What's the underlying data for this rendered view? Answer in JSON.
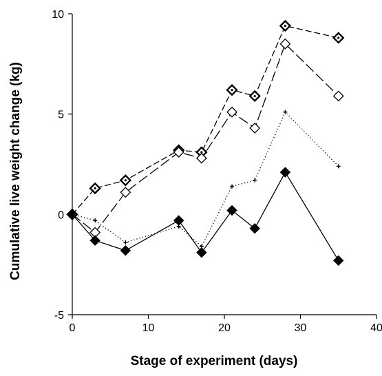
{
  "chart_data": {
    "type": "line",
    "title": "",
    "xlabel": "Stage of experiment (days)",
    "ylabel": "Cumulative live weight change (kg)",
    "xlim": [
      0,
      40
    ],
    "ylim": [
      -5,
      10
    ],
    "x_ticks": [
      0,
      10,
      20,
      30,
      40
    ],
    "y_ticks": [
      -5,
      0,
      5,
      10
    ],
    "grid": false,
    "legend": "none",
    "series": [
      {
        "marker": "diamond-open-dotted",
        "line_style": "short-dash",
        "color": "#000000",
        "x": [
          0,
          3,
          7,
          14,
          17,
          21,
          24,
          28,
          35
        ],
        "y": [
          0,
          1.3,
          1.7,
          3.2,
          3.1,
          6.2,
          5.9,
          9.4,
          8.8
        ]
      },
      {
        "marker": "diamond-open",
        "line_style": "long-dash",
        "color": "#000000",
        "x": [
          0,
          3,
          7,
          14,
          17,
          21,
          24,
          28,
          35
        ],
        "y": [
          0,
          -0.9,
          1.1,
          3.1,
          2.8,
          5.1,
          4.3,
          8.5,
          5.9
        ]
      },
      {
        "marker": "plus",
        "line_style": "dotted",
        "color": "#000000",
        "x": [
          0,
          3,
          7,
          14,
          17,
          21,
          24,
          28,
          35
        ],
        "y": [
          0,
          -0.3,
          -1.4,
          -0.6,
          -1.6,
          1.4,
          1.7,
          5.1,
          2.4
        ]
      },
      {
        "marker": "diamond-filled",
        "line_style": "solid",
        "color": "#000000",
        "x": [
          0,
          3,
          7,
          14,
          17,
          21,
          24,
          28,
          35
        ],
        "y": [
          0,
          -1.3,
          -1.8,
          -0.3,
          -1.9,
          0.2,
          -0.7,
          2.1,
          -2.3
        ]
      }
    ]
  }
}
